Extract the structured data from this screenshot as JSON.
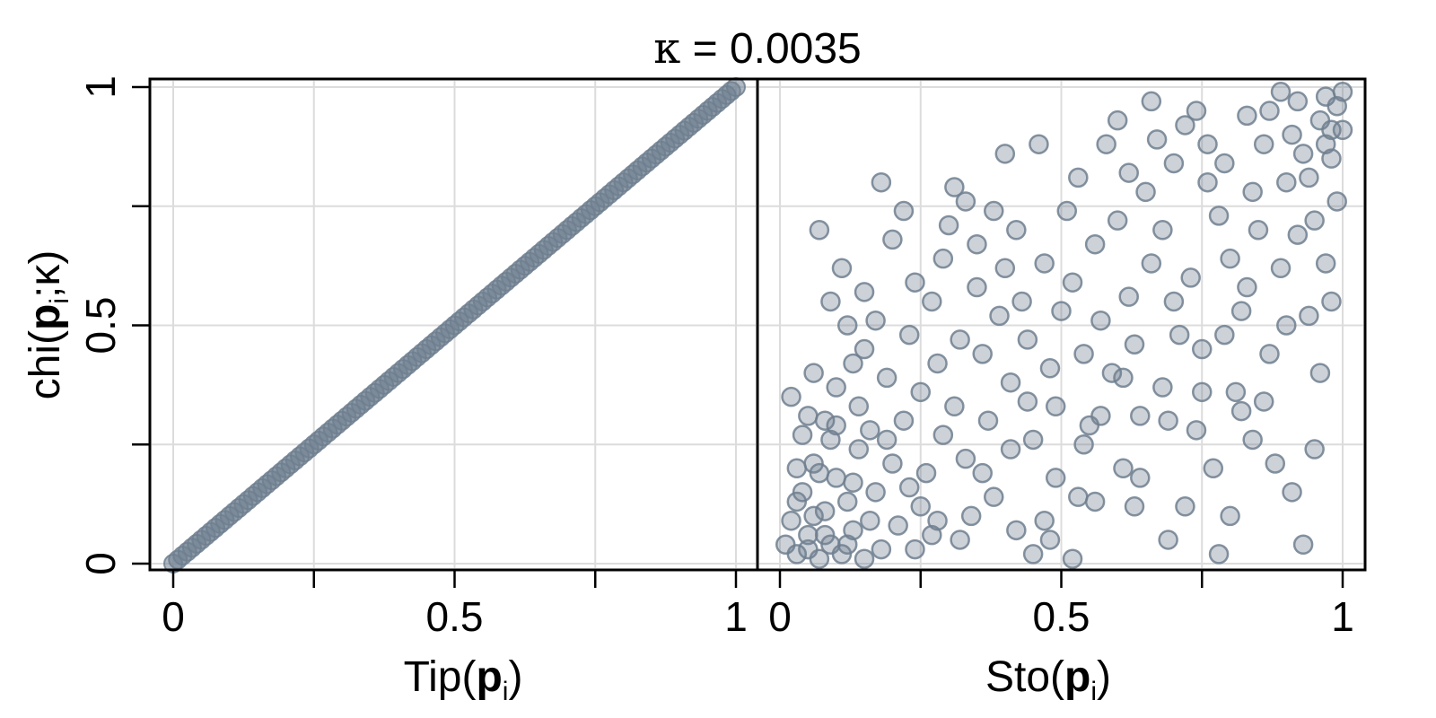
{
  "figure": {
    "title_kappa": "κ",
    "title_equals": " = ",
    "title_value": "0.0035",
    "ylabel": {
      "prefix": "chi(",
      "bold": "p",
      "sub": "i",
      "rest": ";κ)"
    }
  },
  "chart_data": [
    {
      "type": "scatter",
      "panel": "left",
      "xlabel": {
        "prefix": "Tip(",
        "bold": "p",
        "sub": "i",
        "suffix": ")"
      },
      "xlim": [
        0,
        1
      ],
      "ylim": [
        0,
        1
      ],
      "xticks": [
        0,
        0.5,
        1
      ],
      "xtick_labels": [
        "0",
        "0.5",
        "1"
      ],
      "xminor_ticks": [
        0.25,
        0.75
      ],
      "yticks": [
        0,
        0.5,
        1
      ],
      "ytick_labels": [
        "0",
        "0.5",
        "1"
      ],
      "yminor_ticks": [
        0.25,
        0.75
      ],
      "grid": true,
      "marker_color": "#6f7f8f",
      "description_of_points": "dense points lying on the identity line y = x from 0 to 1",
      "x": [
        0,
        0.05,
        0.1,
        0.15,
        0.2,
        0.25,
        0.3,
        0.35,
        0.4,
        0.45,
        0.5,
        0.55,
        0.6,
        0.65,
        0.7,
        0.75,
        0.8,
        0.85,
        0.9,
        0.95,
        1
      ],
      "y": [
        0,
        0.05,
        0.1,
        0.15,
        0.2,
        0.25,
        0.3,
        0.35,
        0.4,
        0.45,
        0.5,
        0.55,
        0.6,
        0.65,
        0.7,
        0.75,
        0.8,
        0.85,
        0.9,
        0.95,
        1
      ]
    },
    {
      "type": "scatter",
      "panel": "right",
      "xlabel": {
        "prefix": "Sto(",
        "bold": "p",
        "sub": "i",
        "suffix": ")"
      },
      "xlim": [
        0,
        1
      ],
      "ylim": [
        0,
        1
      ],
      "xticks": [
        0,
        0.5,
        1
      ],
      "xtick_labels": [
        "0",
        "0.5",
        "1"
      ],
      "xminor_ticks": [
        0.25,
        0.75
      ],
      "grid": true,
      "marker_color": "#6f7f8f",
      "marker_style": "open circle, semi-transparent",
      "points": [
        [
          0.01,
          0.04
        ],
        [
          0.02,
          0.09
        ],
        [
          0.03,
          0.02
        ],
        [
          0.04,
          0.15
        ],
        [
          0.05,
          0.06
        ],
        [
          0.06,
          0.21
        ],
        [
          0.07,
          0.01
        ],
        [
          0.08,
          0.11
        ],
        [
          0.09,
          0.04
        ],
        [
          0.1,
          0.18
        ],
        [
          0.02,
          0.35
        ],
        [
          0.04,
          0.27
        ],
        [
          0.06,
          0.4
        ],
        [
          0.08,
          0.3
        ],
        [
          0.11,
          0.02
        ],
        [
          0.12,
          0.13
        ],
        [
          0.13,
          0.07
        ],
        [
          0.14,
          0.24
        ],
        [
          0.15,
          0.45
        ],
        [
          0.16,
          0.09
        ],
        [
          0.03,
          0.13
        ],
        [
          0.05,
          0.31
        ],
        [
          0.07,
          0.19
        ],
        [
          0.09,
          0.26
        ],
        [
          0.1,
          0.37
        ],
        [
          0.12,
          0.5
        ],
        [
          0.14,
          0.33
        ],
        [
          0.16,
          0.28
        ],
        [
          0.17,
          0.15
        ],
        [
          0.18,
          0.03
        ],
        [
          0.07,
          0.7
        ],
        [
          0.09,
          0.55
        ],
        [
          0.11,
          0.62
        ],
        [
          0.13,
          0.42
        ],
        [
          0.15,
          0.57
        ],
        [
          0.17,
          0.51
        ],
        [
          0.19,
          0.39
        ],
        [
          0.2,
          0.21
        ],
        [
          0.21,
          0.08
        ],
        [
          0.22,
          0.3
        ],
        [
          0.18,
          0.8
        ],
        [
          0.2,
          0.68
        ],
        [
          0.22,
          0.74
        ],
        [
          0.23,
          0.48
        ],
        [
          0.24,
          0.59
        ],
        [
          0.25,
          0.36
        ],
        [
          0.26,
          0.19
        ],
        [
          0.27,
          0.06
        ],
        [
          0.28,
          0.42
        ],
        [
          0.29,
          0.27
        ],
        [
          0.24,
          0.03
        ],
        [
          0.25,
          0.12
        ],
        [
          0.27,
          0.55
        ],
        [
          0.29,
          0.64
        ],
        [
          0.3,
          0.71
        ],
        [
          0.31,
          0.33
        ],
        [
          0.32,
          0.47
        ],
        [
          0.33,
          0.22
        ],
        [
          0.34,
          0.1
        ],
        [
          0.35,
          0.58
        ],
        [
          0.31,
          0.79
        ],
        [
          0.33,
          0.76
        ],
        [
          0.35,
          0.67
        ],
        [
          0.36,
          0.44
        ],
        [
          0.37,
          0.3
        ],
        [
          0.38,
          0.14
        ],
        [
          0.39,
          0.52
        ],
        [
          0.4,
          0.62
        ],
        [
          0.41,
          0.38
        ],
        [
          0.42,
          0.07
        ],
        [
          0.38,
          0.74
        ],
        [
          0.4,
          0.86
        ],
        [
          0.42,
          0.7
        ],
        [
          0.43,
          0.55
        ],
        [
          0.44,
          0.47
        ],
        [
          0.45,
          0.26
        ],
        [
          0.46,
          0.88
        ],
        [
          0.47,
          0.63
        ],
        [
          0.48,
          0.41
        ],
        [
          0.49,
          0.18
        ],
        [
          0.45,
          0.02
        ],
        [
          0.47,
          0.09
        ],
        [
          0.49,
          0.33
        ],
        [
          0.5,
          0.53
        ],
        [
          0.51,
          0.74
        ],
        [
          0.52,
          0.59
        ],
        [
          0.53,
          0.81
        ],
        [
          0.54,
          0.44
        ],
        [
          0.55,
          0.29
        ],
        [
          0.56,
          0.13
        ],
        [
          0.52,
          0.01
        ],
        [
          0.54,
          0.25
        ],
        [
          0.56,
          0.67
        ],
        [
          0.57,
          0.51
        ],
        [
          0.58,
          0.88
        ],
        [
          0.59,
          0.4
        ],
        [
          0.6,
          0.72
        ],
        [
          0.61,
          0.2
        ],
        [
          0.62,
          0.56
        ],
        [
          0.63,
          0.12
        ],
        [
          0.6,
          0.93
        ],
        [
          0.62,
          0.82
        ],
        [
          0.63,
          0.46
        ],
        [
          0.64,
          0.31
        ],
        [
          0.65,
          0.78
        ],
        [
          0.66,
          0.63
        ],
        [
          0.67,
          0.89
        ],
        [
          0.68,
          0.37
        ],
        [
          0.69,
          0.05
        ],
        [
          0.7,
          0.55
        ],
        [
          0.66,
          0.97
        ],
        [
          0.68,
          0.7
        ],
        [
          0.7,
          0.84
        ],
        [
          0.71,
          0.48
        ],
        [
          0.72,
          0.92
        ],
        [
          0.73,
          0.6
        ],
        [
          0.74,
          0.28
        ],
        [
          0.75,
          0.45
        ],
        [
          0.76,
          0.8
        ],
        [
          0.77,
          0.2
        ],
        [
          0.74,
          0.95
        ],
        [
          0.76,
          0.88
        ],
        [
          0.78,
          0.73
        ],
        [
          0.79,
          0.84
        ],
        [
          0.8,
          0.64
        ],
        [
          0.81,
          0.36
        ],
        [
          0.82,
          0.53
        ],
        [
          0.83,
          0.94
        ],
        [
          0.84,
          0.26
        ],
        [
          0.85,
          0.7
        ],
        [
          0.78,
          0.02
        ],
        [
          0.8,
          0.1
        ],
        [
          0.82,
          0.32
        ],
        [
          0.84,
          0.78
        ],
        [
          0.86,
          0.88
        ],
        [
          0.87,
          0.44
        ],
        [
          0.88,
          0.21
        ],
        [
          0.89,
          0.62
        ],
        [
          0.9,
          0.8
        ],
        [
          0.91,
          0.15
        ],
        [
          0.87,
          0.95
        ],
        [
          0.89,
          0.99
        ],
        [
          0.91,
          0.9
        ],
        [
          0.92,
          0.97
        ],
        [
          0.93,
          0.86
        ],
        [
          0.94,
          0.52
        ],
        [
          0.95,
          0.72
        ],
        [
          0.96,
          0.93
        ],
        [
          0.97,
          0.98
        ],
        [
          0.98,
          0.91
        ],
        [
          0.93,
          0.04
        ],
        [
          0.95,
          0.24
        ],
        [
          0.96,
          0.4
        ],
        [
          0.97,
          0.63
        ],
        [
          0.98,
          0.85
        ],
        [
          0.99,
          0.96
        ],
        [
          1.0,
          0.99
        ],
        [
          0.99,
          0.76
        ],
        [
          1.0,
          0.91
        ],
        [
          0.98,
          0.55
        ],
        [
          0.05,
          0.03
        ],
        [
          0.08,
          0.06
        ],
        [
          0.12,
          0.04
        ],
        [
          0.15,
          0.01
        ],
        [
          0.03,
          0.2
        ],
        [
          0.06,
          0.1
        ],
        [
          0.1,
          0.29
        ],
        [
          0.13,
          0.17
        ],
        [
          0.19,
          0.26
        ],
        [
          0.23,
          0.16
        ],
        [
          0.28,
          0.09
        ],
        [
          0.32,
          0.05
        ],
        [
          0.36,
          0.19
        ],
        [
          0.41,
          0.24
        ],
        [
          0.44,
          0.34
        ],
        [
          0.48,
          0.05
        ],
        [
          0.53,
          0.14
        ],
        [
          0.57,
          0.31
        ],
        [
          0.61,
          0.39
        ],
        [
          0.64,
          0.18
        ],
        [
          0.69,
          0.3
        ],
        [
          0.72,
          0.12
        ],
        [
          0.75,
          0.36
        ],
        [
          0.79,
          0.48
        ],
        [
          0.83,
          0.58
        ],
        [
          0.86,
          0.34
        ],
        [
          0.9,
          0.5
        ],
        [
          0.92,
          0.69
        ],
        [
          0.94,
          0.81
        ],
        [
          0.97,
          0.88
        ]
      ]
    }
  ]
}
